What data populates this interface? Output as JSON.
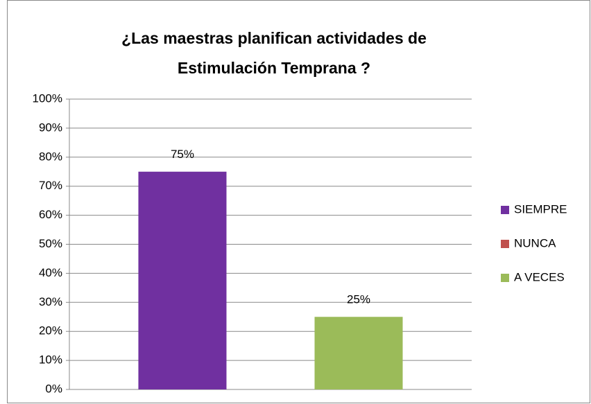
{
  "chart_data": {
    "type": "bar",
    "title": "¿Las maestras planifican actividades de Estimulación Temprana ?",
    "categories": [
      null
    ],
    "series": [
      {
        "name": "SIEMPRE",
        "color": "#7030a0",
        "values": [
          75
        ],
        "value_labels": [
          "75%"
        ]
      },
      {
        "name": "NUNCA",
        "color": "#c0504d",
        "values": [
          null
        ]
      },
      {
        "name": "A VECES",
        "color": "#9bbb59",
        "values": [
          25
        ],
        "value_labels": [
          "25%"
        ]
      }
    ],
    "ylim": [
      0,
      100
    ],
    "yticks": [
      {
        "value": 0,
        "label": "0%"
      },
      {
        "value": 10,
        "label": "10%"
      },
      {
        "value": 20,
        "label": "20%"
      },
      {
        "value": 30,
        "label": "30%"
      },
      {
        "value": 40,
        "label": "40%"
      },
      {
        "value": 50,
        "label": "50%"
      },
      {
        "value": 60,
        "label": "60%"
      },
      {
        "value": 70,
        "label": "70%"
      },
      {
        "value": 80,
        "label": "80%"
      },
      {
        "value": 90,
        "label": "90%"
      },
      {
        "value": 100,
        "label": "100%"
      }
    ],
    "grid": true,
    "legend": "right"
  }
}
